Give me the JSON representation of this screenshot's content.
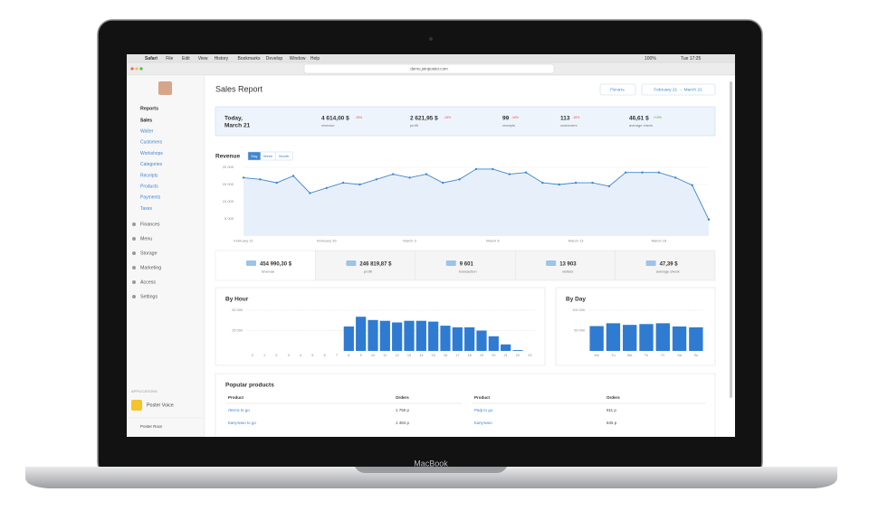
{
  "menubar": {
    "items": [
      "Safari",
      "File",
      "Edit",
      "View",
      "History",
      "Bookmarks",
      "Develop",
      "Window",
      "Help"
    ],
    "battery": "100%",
    "clock": "Tue 17:25"
  },
  "browser": {
    "url": "demo.joinposter.com"
  },
  "sidebar": {
    "reports": "Reports",
    "report_items": [
      "Sales",
      "Waiter",
      "Customers",
      "Workshops",
      "Categories",
      "Receipts",
      "Products",
      "Payments",
      "Taxes"
    ],
    "menu": [
      "Finances",
      "Menu",
      "Storage",
      "Marketing",
      "Access",
      "Settings"
    ],
    "apps_heading": "APPLICATIONS",
    "app": "Poster Voice",
    "user": "Poster Root"
  },
  "header": {
    "title": "Sales Report",
    "print": "Печать",
    "date_range": "February 21 → March 21"
  },
  "today": {
    "label": "Today,",
    "date": "March 21",
    "stats": [
      {
        "value": "4 614,00 $",
        "change": "-15%",
        "label": "revenue"
      },
      {
        "value": "2 621,95 $",
        "change": "-16%",
        "label": "profit"
      },
      {
        "value": "99",
        "change": "-16%",
        "label": "receipts"
      },
      {
        "value": "113",
        "change": "-15%",
        "label": "customers"
      },
      {
        "value": "46,61 $",
        "change": "+19%",
        "label": "average check"
      }
    ]
  },
  "revenue_chart": {
    "title": "Revenue",
    "tabs": [
      "Day",
      "Week",
      "Month"
    ],
    "categories": [
      "February 21",
      null,
      null,
      null,
      null,
      "February 26",
      null,
      null,
      null,
      null,
      "March 3",
      null,
      null,
      null,
      null,
      "March 8",
      null,
      null,
      null,
      null,
      "March 13",
      null,
      null,
      null,
      null,
      "March 18",
      null,
      null,
      null
    ],
    "values": [
      17000,
      16500,
      15500,
      17500,
      12500,
      14000,
      15500,
      15000,
      16500,
      18000,
      17000,
      18000,
      15500,
      16500,
      19500,
      19500,
      18000,
      18500,
      15500,
      15000,
      15500,
      15500,
      14500,
      18500,
      18500,
      18500,
      17000,
      14800,
      4800
    ],
    "ylim": [
      0,
      20000
    ],
    "yticks": [
      {
        "value": 5000,
        "label": "5 000"
      },
      {
        "value": 10000,
        "label": "10 000"
      },
      {
        "value": 15000,
        "label": "15 000"
      },
      {
        "value": 20000,
        "label": "20 000"
      }
    ]
  },
  "totals": [
    {
      "value": "454 990,30 $",
      "label": "revenue"
    },
    {
      "value": "246 819,87 $",
      "label": "profit"
    },
    {
      "value": "9 601",
      "label": "transaction"
    },
    {
      "value": "13 903",
      "label": "visitors"
    },
    {
      "value": "47,39 $",
      "label": "average check"
    }
  ],
  "by_hour": {
    "title": "By Hour",
    "categories": [
      "0",
      "1",
      "2",
      "3",
      "4",
      "5",
      "6",
      "7",
      "8",
      "9",
      "10",
      "11",
      "12",
      "13",
      "14",
      "15",
      "16",
      "17",
      "18",
      "19",
      "20",
      "21",
      "22",
      "23"
    ],
    "values": [
      0,
      0,
      0,
      0,
      0,
      0,
      0,
      0,
      30000,
      42000,
      38000,
      37000,
      35000,
      37000,
      37000,
      36000,
      31000,
      29000,
      29000,
      25000,
      18000,
      8000,
      1000,
      0
    ],
    "ylim": [
      0,
      50000
    ],
    "yticks": [
      {
        "value": 25000,
        "label": "25 000"
      },
      {
        "value": 50000,
        "label": "50 000"
      }
    ]
  },
  "by_day": {
    "title": "By Day",
    "categories": [
      "Mo",
      "Tu",
      "We",
      "Th",
      "Fr",
      "Sa",
      "Su"
    ],
    "values": [
      61000,
      68000,
      64000,
      66000,
      68000,
      60000,
      58000
    ],
    "ylim": [
      0,
      100000
    ],
    "yticks": [
      {
        "value": 50000,
        "label": "50 000"
      },
      {
        "value": 100000,
        "label": "100 000"
      }
    ]
  },
  "popular": {
    "title": "Popular products",
    "headers": [
      "Product",
      "Orders",
      "Product",
      "Orders"
    ],
    "rows": [
      [
        "Лента to go",
        "1 750 р",
        "Раф to go",
        "911 р"
      ],
      [
        "Капучино to go",
        "1 484 р",
        "Капучино",
        "845 р"
      ]
    ]
  },
  "device": "MacBook"
}
